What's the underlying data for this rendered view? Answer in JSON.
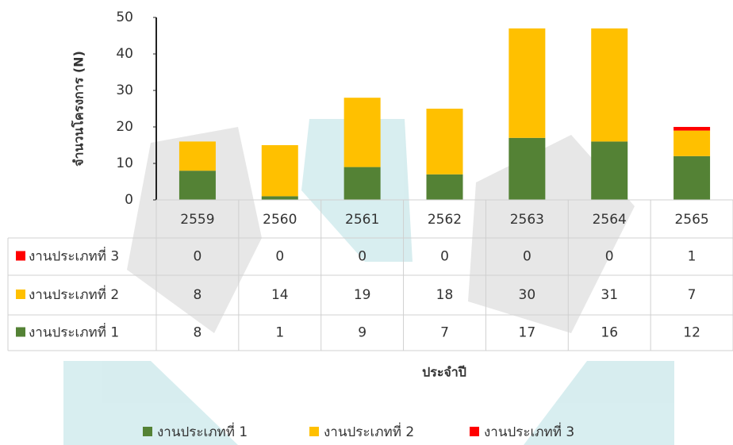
{
  "chart_data": {
    "type": "bar",
    "stacked": true,
    "y_label": "จำนวนโครงการ (N)",
    "x_label": "ประจำปี",
    "categories": [
      "2559",
      "2560",
      "2561",
      "2562",
      "2563",
      "2564",
      "2565"
    ],
    "series": [
      {
        "name": "งานประเภทที่ 1",
        "color": "#548235",
        "values": [
          8,
          1,
          9,
          7,
          17,
          16,
          12
        ]
      },
      {
        "name": "งานประเภทที่ 2",
        "color": "#ffc000",
        "values": [
          8,
          14,
          19,
          18,
          30,
          31,
          7
        ]
      },
      {
        "name": "งานประเภทที่ 3",
        "color": "#ff0000",
        "values": [
          0,
          0,
          0,
          0,
          0,
          0,
          1
        ]
      }
    ],
    "ylim": [
      0,
      50
    ],
    "yticks": [
      0,
      10,
      20,
      30,
      40,
      50
    ],
    "legend": "bottom",
    "data_table": true
  }
}
